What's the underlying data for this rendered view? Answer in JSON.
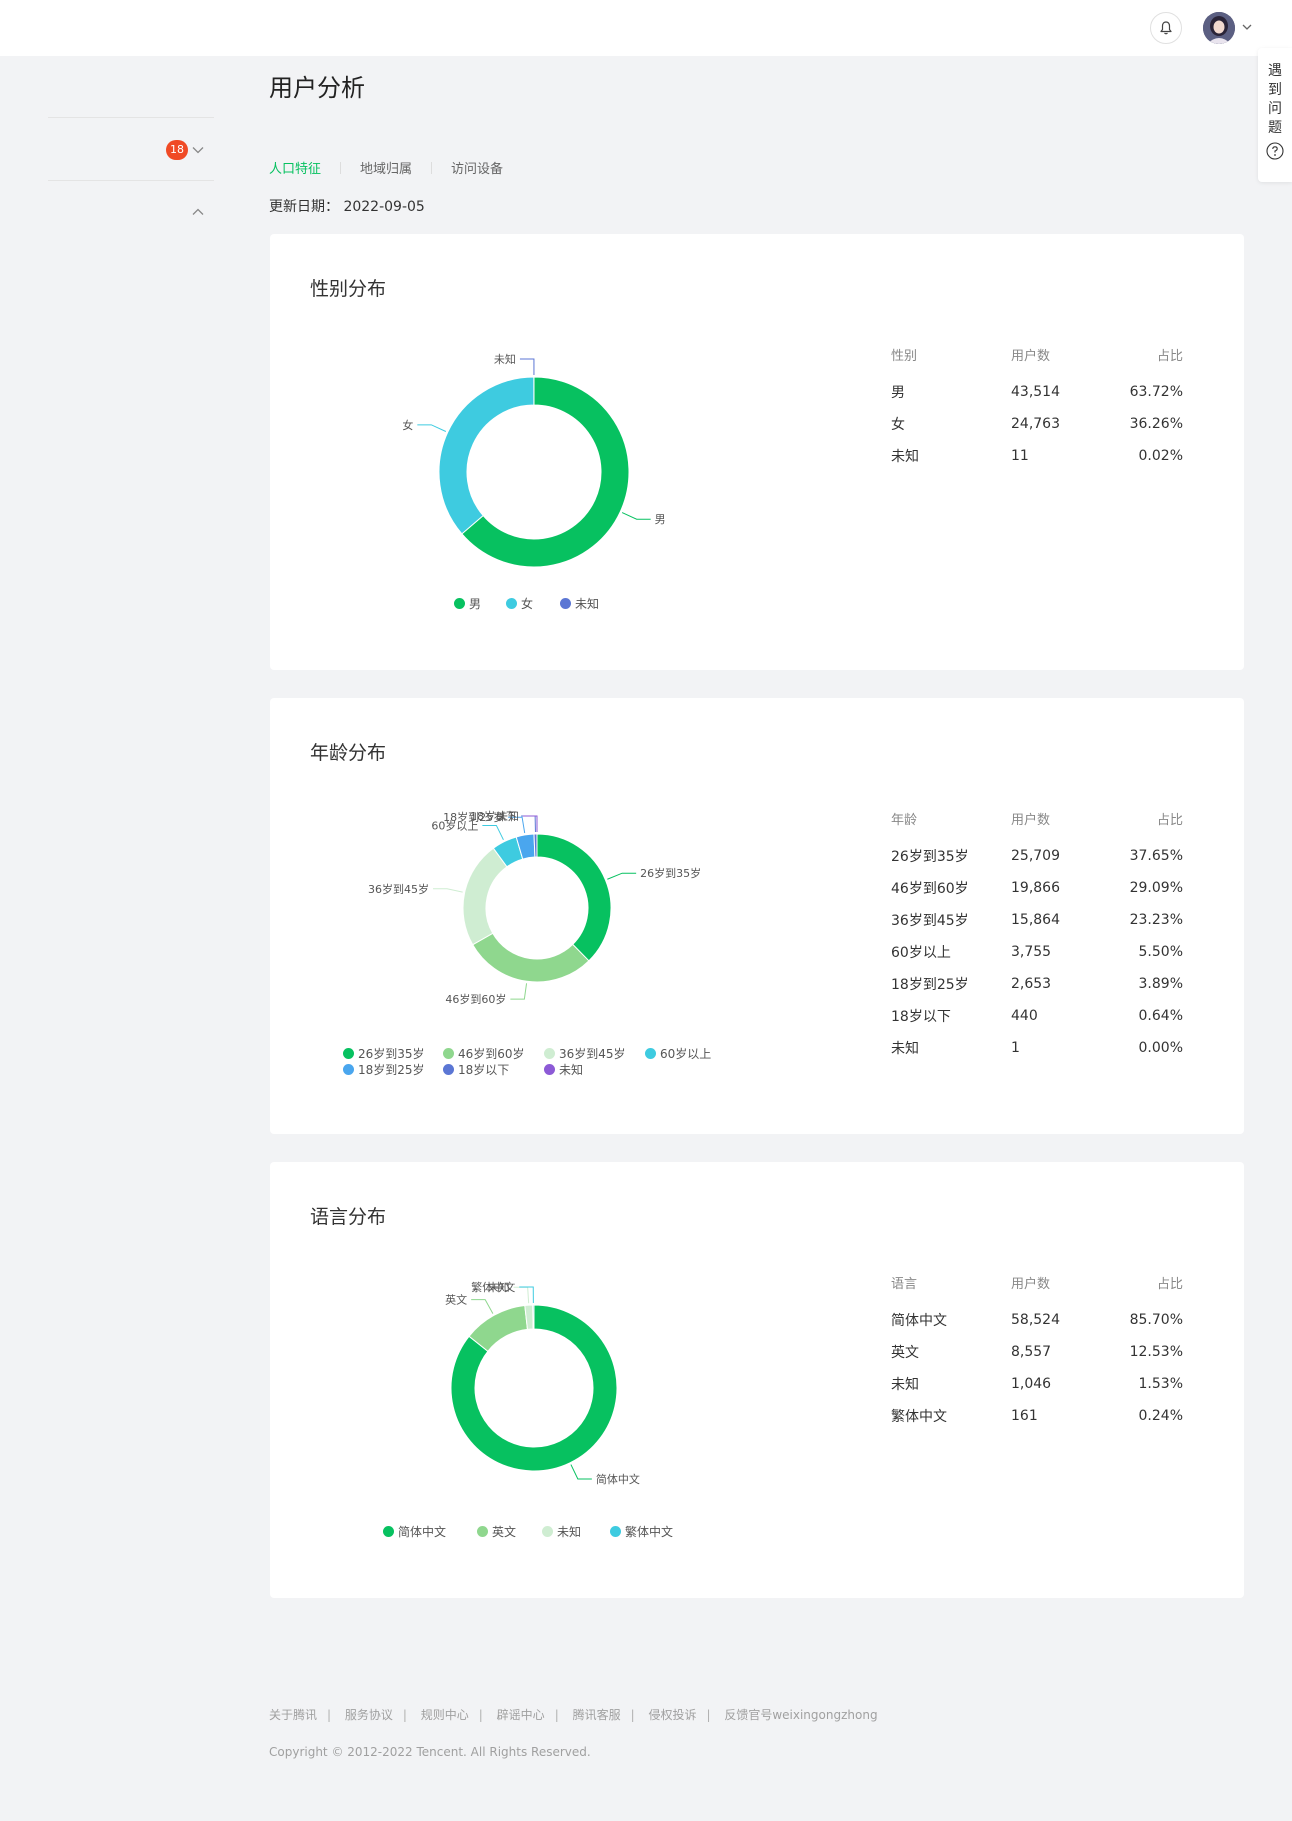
{
  "header": {
    "notification_icon": "bell-icon",
    "avatar_icon": "user-avatar",
    "menu_icon": "chevron-down-icon"
  },
  "help": {
    "label": "遇到问题",
    "icon": "question-circle-icon"
  },
  "sidebar": {
    "badge": "18"
  },
  "page": {
    "title": "用户分析",
    "tabs": [
      {
        "label": "人口特征",
        "active": true
      },
      {
        "label": "地域归属",
        "active": false
      },
      {
        "label": "访问设备",
        "active": false
      }
    ],
    "update_label": "更新日期：",
    "update_date": "2022-09-05"
  },
  "colors": {
    "accent": "#07c160",
    "badge": "#f04a25"
  },
  "charts": [
    {
      "title": "性别分布",
      "table_headers": [
        "性别",
        "用户数",
        "占比"
      ],
      "rows": [
        [
          "男",
          "43,514",
          "63.72%"
        ],
        [
          "女",
          "24,763",
          "36.26%"
        ],
        [
          "未知",
          "11",
          "0.02%"
        ]
      ]
    },
    {
      "title": "年龄分布",
      "table_headers": [
        "年龄",
        "用户数",
        "占比"
      ],
      "rows": [
        [
          "26岁到35岁",
          "25,709",
          "37.65%"
        ],
        [
          "46岁到60岁",
          "19,866",
          "29.09%"
        ],
        [
          "36岁到45岁",
          "15,864",
          "23.23%"
        ],
        [
          "60岁以上",
          "3,755",
          "5.50%"
        ],
        [
          "18岁到25岁",
          "2,653",
          "3.89%"
        ],
        [
          "18岁以下",
          "440",
          "0.64%"
        ],
        [
          "未知",
          "1",
          "0.00%"
        ]
      ]
    },
    {
      "title": "语言分布",
      "table_headers": [
        "语言",
        "用户数",
        "占比"
      ],
      "rows": [
        [
          "简体中文",
          "58,524",
          "85.70%"
        ],
        [
          "英文",
          "8,557",
          "12.53%"
        ],
        [
          "未知",
          "1,046",
          "1.53%"
        ],
        [
          "繁体中文",
          "161",
          "0.24%"
        ]
      ]
    }
  ],
  "chart_data": [
    {
      "type": "pie",
      "title": "性别分布",
      "categories": [
        "男",
        "女",
        "未知"
      ],
      "values": [
        43514,
        24763,
        11
      ],
      "colors": [
        "#07c160",
        "#3ecbe0",
        "#5b76d4"
      ],
      "legend": [
        "男",
        "女",
        "未知"
      ]
    },
    {
      "type": "pie",
      "title": "年龄分布",
      "categories": [
        "26岁到35岁",
        "46岁到60岁",
        "36岁到45岁",
        "60岁以上",
        "18岁到25岁",
        "18岁以下",
        "未知"
      ],
      "values": [
        25709,
        19866,
        15864,
        3755,
        2653,
        440,
        1
      ],
      "colors": [
        "#07c160",
        "#8fd78e",
        "#cfedd2",
        "#3ecbe0",
        "#4aa6ee",
        "#5b76d4",
        "#8c5ad6"
      ],
      "legend": [
        "26岁到35岁",
        "46岁到60岁",
        "36岁到45岁",
        "60岁以上",
        "18岁到25岁",
        "18岁以下",
        "未知"
      ]
    },
    {
      "type": "pie",
      "title": "语言分布",
      "categories": [
        "简体中文",
        "英文",
        "未知",
        "繁体中文"
      ],
      "values": [
        58524,
        8557,
        1046,
        161
      ],
      "colors": [
        "#07c160",
        "#8fd78e",
        "#cfedd2",
        "#3ecbe0"
      ],
      "legend": [
        "简体中文",
        "英文",
        "未知",
        "繁体中文"
      ]
    }
  ],
  "footer": {
    "links": [
      "关于腾讯",
      "服务协议",
      "规则中心",
      "辟谣中心",
      "腾讯客服",
      "侵权投诉",
      "反馈官号weixingongzhong"
    ],
    "copyright": "Copyright © 2012-2022 Tencent. All Rights Reserved."
  }
}
